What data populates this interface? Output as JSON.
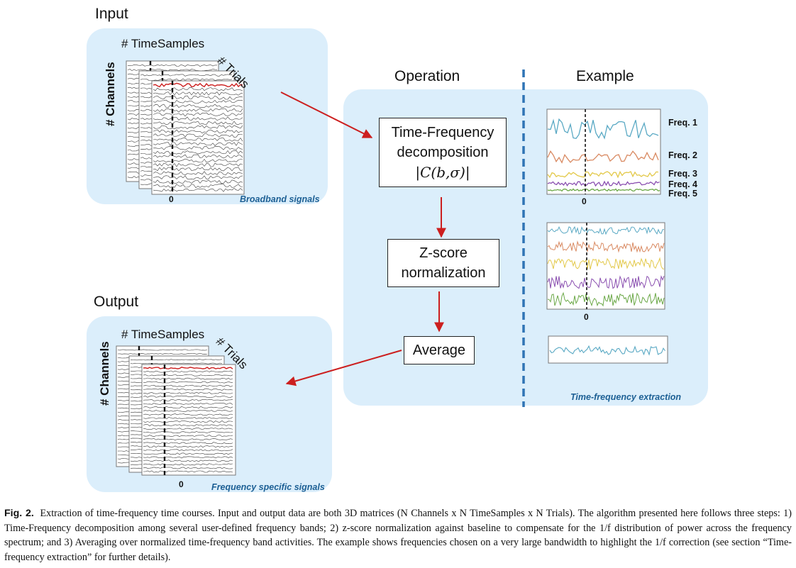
{
  "input": {
    "title": "Input",
    "time_axis": "# TimeSamples",
    "trials_axis": "# Trials",
    "channels_axis": "# Channels",
    "zero_tick": "0",
    "panel_label": "Broadband signals"
  },
  "operation": {
    "title": "Operation",
    "step1_line1": "Time-Frequency",
    "step1_line2": "decomposition",
    "step1_line3": "|C(b,σ)|",
    "step2_line1": "Z-score",
    "step2_line2": "normalization",
    "step3": "Average"
  },
  "example": {
    "title": "Example",
    "freq_labels": [
      "Freq. 1",
      "Freq. 2",
      "Freq. 3",
      "Freq. 4",
      "Freq. 5"
    ],
    "zero_tick_top": "0",
    "zero_tick_mid": "0",
    "panel_label": "Time-frequency extraction",
    "colors": [
      "#5aa9c4",
      "#d98a62",
      "#e3c94a",
      "#8a4fb0",
      "#6ba847"
    ]
  },
  "output": {
    "title": "Output",
    "time_axis": "# TimeSamples",
    "trials_axis": "# Trials",
    "channels_axis": "# Channels",
    "zero_tick": "0",
    "panel_label": "Frequency specific signals"
  },
  "caption": {
    "label": "Fig. 2.",
    "text": "Extraction of time-frequency time courses. Input and output data are both 3D matrices (N Channels x N TimeSamples x N Trials). The algorithm presented here follows three steps: 1) Time-Frequency decomposition among several user-defined frequency bands; 2) z-score normalization against baseline to compensate for the 1/f distribution of power across the frequency spectrum; and 3) Averaging over normalized time-frequency band activities. The example shows frequencies chosen on a very large bandwidth to highlight the 1/f correction (see section “Time-frequency extraction” for further details)."
  },
  "style": {
    "panel_fill": "#dbeefb",
    "arrow_color": "#cc1f1f",
    "divider_color": "#2f74b5",
    "highlight_trace": "#cc1f1f"
  }
}
